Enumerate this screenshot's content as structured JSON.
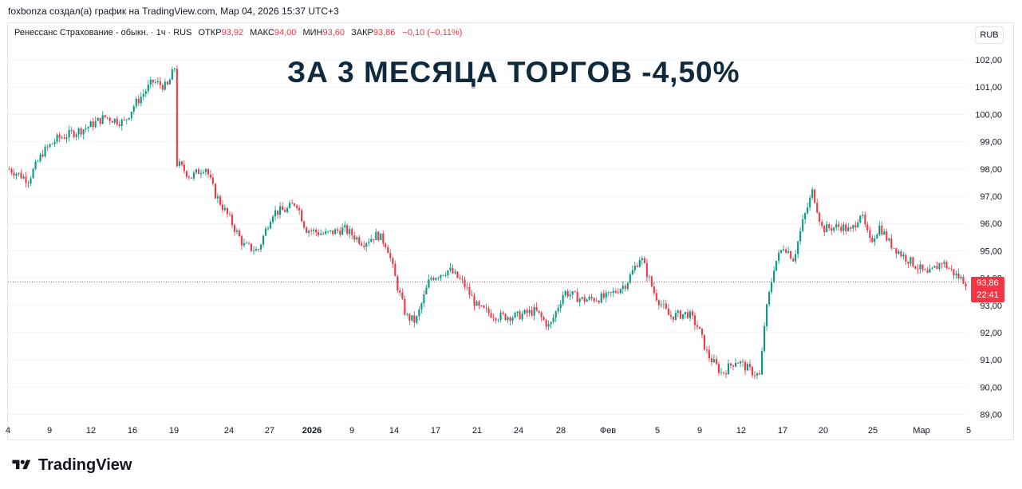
{
  "caption": "foxbonza создал(а) график на TradingView.com, Мар 04, 2026 15:37 UTC+3",
  "legend": {
    "symbol": "Ренессанс Страхование - обыкн. · 1ч · RUS",
    "open_label": "ОТКР",
    "open_value": "93,92",
    "high_label": "МАКС",
    "high_value": "94,00",
    "low_label": "МИН",
    "low_value": "93,60",
    "close_label": "ЗАКР",
    "close_value": "93,86",
    "change": "−0,10 (−0,11%)"
  },
  "currency": "RUB",
  "headline": "ЗА 3 МЕСЯЦА ТОРГОВ -4,50%",
  "last_price": {
    "price": "93,86",
    "countdown": "22:41",
    "color": "#f23645"
  },
  "brand": {
    "name": "TradingView",
    "icon": "tradingview-logo-icon"
  },
  "colors": {
    "up": "#089981",
    "down": "#f23645",
    "headline": "#0f2a3c",
    "axis_text": "#131722",
    "grid": "#f0f3fa"
  },
  "chart_data": {
    "type": "candlestick",
    "title": "",
    "ylim": [
      89.0,
      102.4
    ],
    "y_ticks": [
      "102,00",
      "101,00",
      "100,00",
      "99,00",
      "98,00",
      "97,00",
      "96,00",
      "95,00",
      "94,00",
      "93,00",
      "92,00",
      "91,00",
      "90,00",
      "89,00"
    ],
    "y_tick_values": [
      102,
      101,
      100,
      99,
      98,
      97,
      96,
      95,
      94,
      93,
      92,
      91,
      90,
      89
    ],
    "x_ticks": [
      {
        "label": "4",
        "bold": false
      },
      {
        "label": "9",
        "bold": false
      },
      {
        "label": "12",
        "bold": false
      },
      {
        "label": "16",
        "bold": false
      },
      {
        "label": "19",
        "bold": false
      },
      {
        "label": "24",
        "bold": false
      },
      {
        "label": "27",
        "bold": false
      },
      {
        "label": "2026",
        "bold": true
      },
      {
        "label": "9",
        "bold": false
      },
      {
        "label": "14",
        "bold": false
      },
      {
        "label": "17",
        "bold": false
      },
      {
        "label": "21",
        "bold": false
      },
      {
        "label": "24",
        "bold": false
      },
      {
        "label": "28",
        "bold": false
      },
      {
        "label": "Фев",
        "bold": false
      },
      {
        "label": "5",
        "bold": false
      },
      {
        "label": "9",
        "bold": false
      },
      {
        "label": "12",
        "bold": false
      },
      {
        "label": "17",
        "bold": false
      },
      {
        "label": "20",
        "bold": false
      },
      {
        "label": "25",
        "bold": false
      },
      {
        "label": "Мар",
        "bold": false
      },
      {
        "label": "5",
        "bold": false
      }
    ],
    "price_path_note": "approximate closing price trajectory, read from chart",
    "price_path": [
      [
        0,
        98.0
      ],
      [
        0.02,
        97.6
      ],
      [
        0.035,
        98.6
      ],
      [
        0.05,
        99.1
      ],
      [
        0.08,
        99.5
      ],
      [
        0.1,
        99.9
      ],
      [
        0.12,
        99.7
      ],
      [
        0.13,
        100.3
      ],
      [
        0.15,
        101.2
      ],
      [
        0.165,
        101.0
      ],
      [
        0.175,
        101.9
      ],
      [
        0.176,
        98.2
      ],
      [
        0.19,
        97.7
      ],
      [
        0.205,
        98.1
      ],
      [
        0.215,
        97.1
      ],
      [
        0.23,
        96.2
      ],
      [
        0.245,
        95.2
      ],
      [
        0.26,
        95.0
      ],
      [
        0.275,
        96.4
      ],
      [
        0.29,
        96.5
      ],
      [
        0.3,
        96.8
      ],
      [
        0.31,
        95.8
      ],
      [
        0.33,
        95.6
      ],
      [
        0.35,
        95.8
      ],
      [
        0.37,
        95.3
      ],
      [
        0.385,
        95.6
      ],
      [
        0.395,
        95.2
      ],
      [
        0.405,
        93.8
      ],
      [
        0.415,
        92.6
      ],
      [
        0.425,
        92.4
      ],
      [
        0.44,
        94.0
      ],
      [
        0.46,
        94.3
      ],
      [
        0.475,
        93.8
      ],
      [
        0.49,
        92.9
      ],
      [
        0.51,
        92.6
      ],
      [
        0.53,
        92.6
      ],
      [
        0.55,
        92.8
      ],
      [
        0.565,
        92.2
      ],
      [
        0.58,
        93.5
      ],
      [
        0.6,
        93.2
      ],
      [
        0.625,
        93.3
      ],
      [
        0.645,
        93.8
      ],
      [
        0.66,
        94.8
      ],
      [
        0.675,
        93.4
      ],
      [
        0.69,
        92.6
      ],
      [
        0.71,
        92.7
      ],
      [
        0.72,
        92.2
      ],
      [
        0.73,
        91.2
      ],
      [
        0.745,
        90.5
      ],
      [
        0.76,
        91.0
      ],
      [
        0.775,
        90.6
      ],
      [
        0.785,
        90.4
      ],
      [
        0.79,
        92.5
      ],
      [
        0.8,
        94.5
      ],
      [
        0.81,
        95.2
      ],
      [
        0.82,
        94.7
      ],
      [
        0.83,
        96.1
      ],
      [
        0.84,
        97.2
      ],
      [
        0.85,
        95.8
      ],
      [
        0.87,
        95.9
      ],
      [
        0.88,
        95.7
      ],
      [
        0.89,
        96.4
      ],
      [
        0.9,
        95.3
      ],
      [
        0.91,
        95.9
      ],
      [
        0.92,
        95.3
      ],
      [
        0.935,
        94.8
      ],
      [
        0.95,
        94.4
      ],
      [
        0.96,
        94.1
      ],
      [
        0.975,
        94.6
      ],
      [
        0.99,
        94.1
      ],
      [
        1.0,
        93.86
      ]
    ]
  }
}
